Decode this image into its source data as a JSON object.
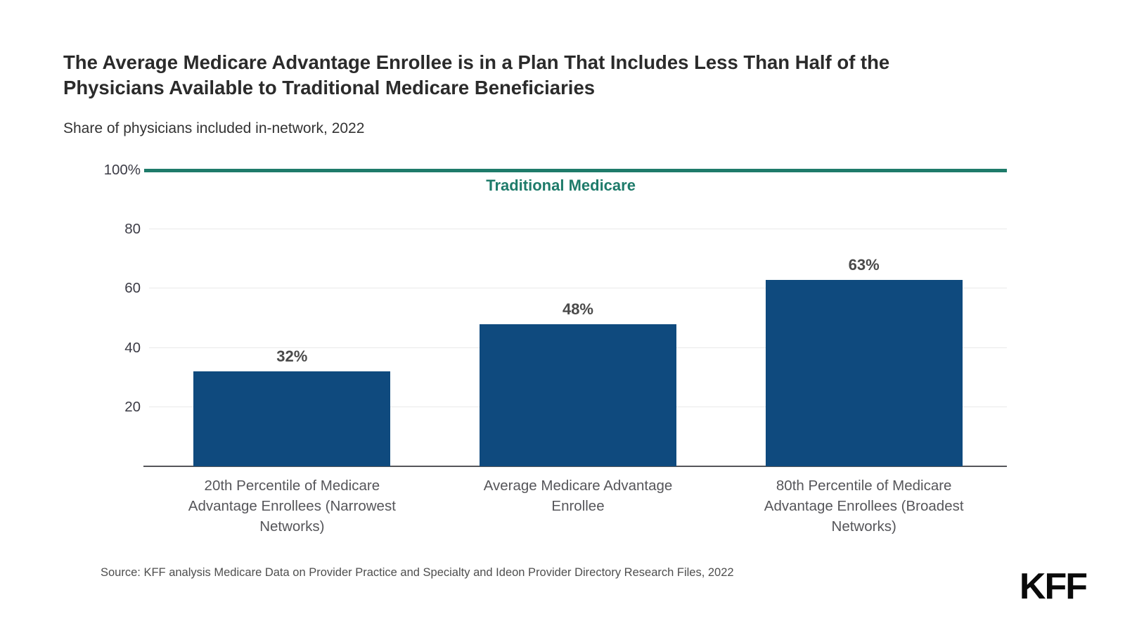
{
  "header": {
    "title": "The Average Medicare Advantage Enrollee is in a Plan That Includes Less Than Half of the Physicians Available to Traditional Medicare Beneficiaries",
    "subtitle": "Share of physicians included in-network, 2022"
  },
  "chart_data": {
    "type": "bar",
    "title": "The Average Medicare Advantage Enrollee is in a Plan That Includes Less Than Half of the Physicians Available to Traditional Medicare Beneficiaries",
    "subtitle": "Share of physicians included in-network, 2022",
    "categories": [
      "20th Percentile of Medicare Advantage Enrollees (Narrowest Networks)",
      "Average Medicare Advantage Enrollee",
      "80th Percentile of Medicare Advantage Enrollees (Broadest Networks)"
    ],
    "values": [
      32,
      48,
      63
    ],
    "value_labels": [
      "32%",
      "48%",
      "63%"
    ],
    "xlabel": "",
    "ylabel": "",
    "ylim": [
      0,
      100
    ],
    "grid": true,
    "legend_position": "none",
    "bar_color": "#0f4a7e",
    "reference_line": {
      "value": 100,
      "label": "Traditional Medicare",
      "color": "#1e7b6a"
    },
    "y_ticks": [
      {
        "value": 100,
        "label": "100%"
      },
      {
        "value": 80,
        "label": "80"
      },
      {
        "value": 60,
        "label": "60"
      },
      {
        "value": 40,
        "label": "40"
      },
      {
        "value": 20,
        "label": "20"
      }
    ]
  },
  "footer": {
    "source": "Source: KFF analysis Medicare Data on Provider Practice and Specialty and Ideon Provider Directory Research Files, 2022",
    "logo_text": "KFF"
  },
  "colors": {
    "bar": "#0f4a7e",
    "reference": "#1e7b6a",
    "title_text": "#2b2b2b",
    "axis_text": "#3c3c46",
    "category_text": "#56565a",
    "gridline": "#e9e9e9",
    "baseline": "#55565a"
  }
}
